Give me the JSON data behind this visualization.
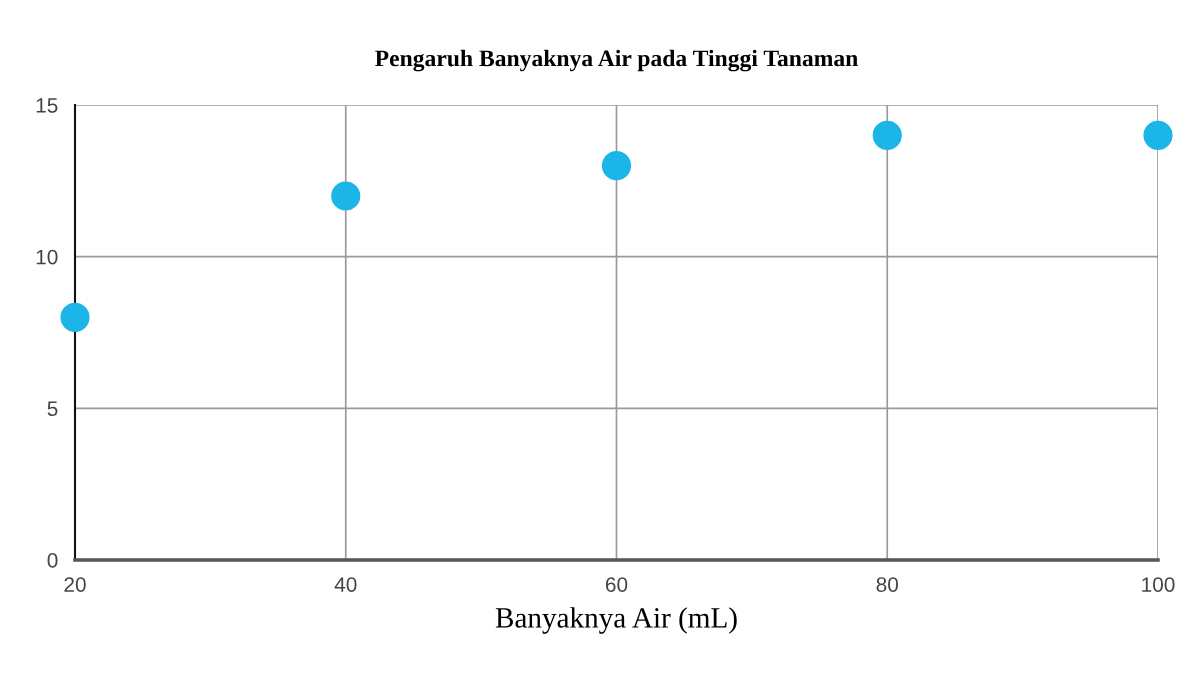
{
  "chart_data": {
    "type": "scatter",
    "title": "Pengaruh Banyaknya Air pada Tinggi Tanaman",
    "xlabel": "Banyaknya Air (mL)",
    "x": [
      20,
      40,
      60,
      80,
      100
    ],
    "series": [
      {
        "color": "#1bb5e8",
        "values": [
          8,
          12,
          13,
          14,
          14
        ]
      }
    ],
    "xlim": [
      20,
      100
    ],
    "xticks": [
      20,
      40,
      60,
      80,
      100
    ],
    "ylim": [
      0,
      15
    ],
    "yticks": [
      0,
      5,
      10,
      15
    ],
    "grid": true,
    "marker": "circle",
    "legend": false
  }
}
